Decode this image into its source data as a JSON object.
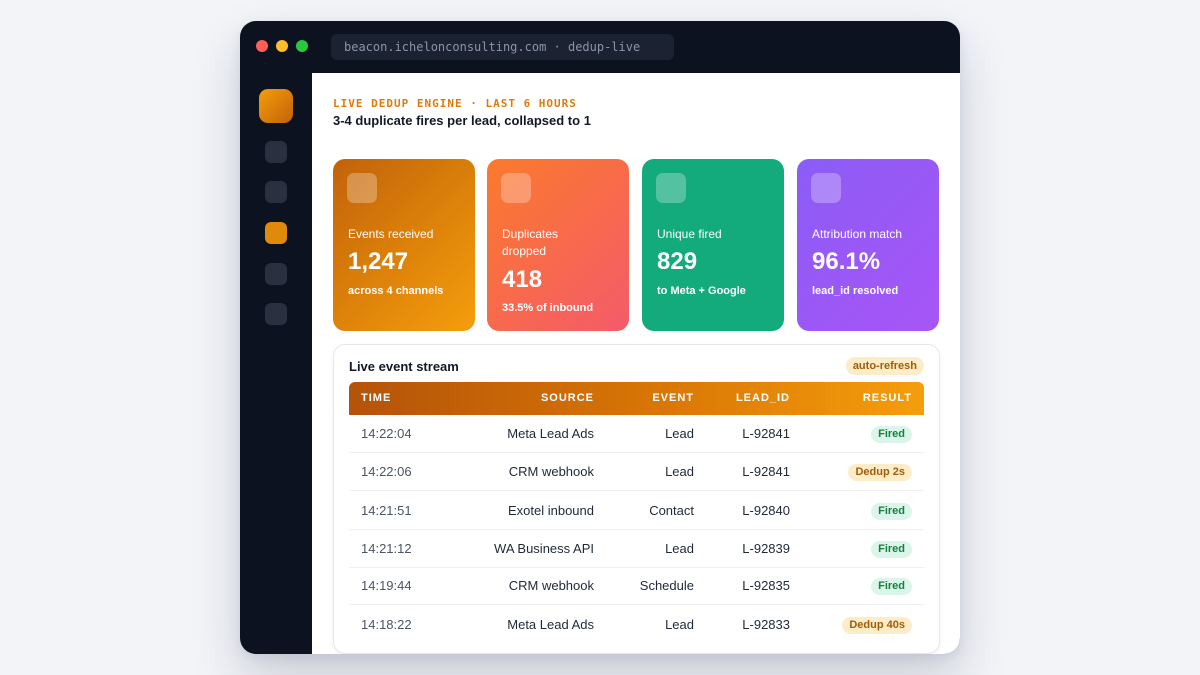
{
  "browser": {
    "url": "beacon.ichelonconsulting.com · dedup-live"
  },
  "header": {
    "kicker": "LIVE DEDUP ENGINE · LAST 6 HOURS",
    "headline": "3-4 duplicate fires per lead, collapsed to 1"
  },
  "stats": [
    {
      "label": "Events received",
      "value": "1,247",
      "sub": "across 4 channels"
    },
    {
      "label": "Duplicates dropped",
      "value": "418",
      "sub": "33.5% of inbound"
    },
    {
      "label": "Unique fired",
      "value": "829",
      "sub": "to Meta + Google"
    },
    {
      "label": "Attribution match",
      "value": "96.1%",
      "sub": "lead_id resolved"
    }
  ],
  "stream": {
    "title": "Live event stream",
    "badge": "auto-refresh",
    "columns": [
      "TIME",
      "SOURCE",
      "EVENT",
      "LEAD_ID",
      "RESULT"
    ],
    "rows": [
      {
        "time": "14:22:04",
        "source": "Meta Lead Ads",
        "event": "Lead",
        "lead_id": "L-92841",
        "result": "Fired",
        "status": "fired"
      },
      {
        "time": "14:22:06",
        "source": "CRM webhook",
        "event": "Lead",
        "lead_id": "L-92841",
        "result": "Dedup 2s",
        "status": "dedup"
      },
      {
        "time": "14:21:51",
        "source": "Exotel inbound",
        "event": "Contact",
        "lead_id": "L-92840",
        "result": "Fired",
        "status": "fired"
      },
      {
        "time": "14:21:12",
        "source": "WA Business API",
        "event": "Lead",
        "lead_id": "L-92839",
        "result": "Fired",
        "status": "fired"
      },
      {
        "time": "14:19:44",
        "source": "CRM webhook",
        "event": "Schedule",
        "lead_id": "L-92835",
        "result": "Fired",
        "status": "fired"
      },
      {
        "time": "14:18:22",
        "source": "Meta Lead Ads",
        "event": "Lead",
        "lead_id": "L-92833",
        "result": "Dedup 40s",
        "status": "dedup"
      }
    ]
  },
  "colors": {
    "accent": "#e07b0a",
    "fired": "#15803d",
    "dedup": "#a15c07"
  }
}
